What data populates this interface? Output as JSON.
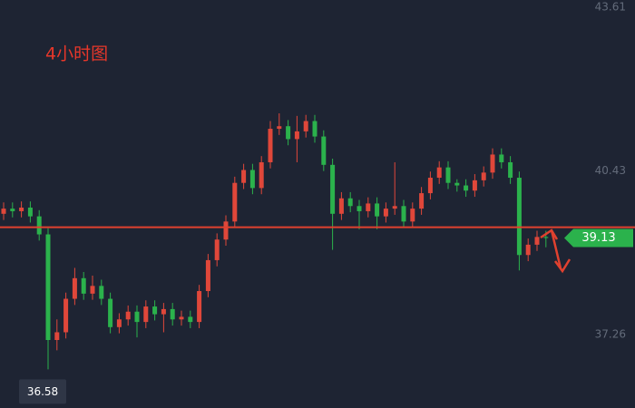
{
  "chart_data": {
    "type": "candlestick",
    "title": "4小时图",
    "categories": [
      null,
      null,
      null,
      null,
      null,
      null,
      null,
      null,
      null,
      null,
      null,
      null,
      null,
      null,
      null,
      null,
      null,
      null,
      null,
      null,
      null,
      null,
      null,
      null,
      null,
      null,
      null,
      null,
      null,
      null,
      null,
      null,
      null,
      null,
      null,
      null,
      null,
      null,
      null,
      null,
      null,
      null,
      null,
      null,
      null,
      null,
      null,
      null,
      null,
      null,
      null,
      null,
      null,
      null,
      null,
      null,
      null,
      null,
      null,
      null,
      null,
      null
    ],
    "open": [
      39.6,
      39.7,
      39.65,
      39.72,
      39.55,
      39.2,
      37.15,
      37.3,
      37.95,
      38.35,
      38.05,
      38.2,
      37.95,
      37.4,
      37.55,
      37.7,
      37.5,
      37.8,
      37.65,
      37.75,
      37.55,
      37.6,
      37.5,
      38.1,
      38.7,
      39.1,
      39.45,
      40.2,
      40.45,
      40.1,
      40.6,
      41.25,
      41.3,
      41.05,
      41.2,
      41.4,
      41.1,
      40.55,
      39.6,
      39.9,
      39.75,
      39.65,
      39.8,
      39.55,
      39.7,
      39.75,
      39.45,
      39.7,
      40.0,
      40.3,
      40.5,
      40.2,
      40.15,
      40.05,
      40.25,
      40.4,
      40.75,
      40.6,
      40.3,
      38.8,
      39.0,
      39.15
    ],
    "high": [
      39.82,
      39.82,
      39.84,
      39.84,
      39.67,
      39.32,
      37.55,
      38.07,
      38.55,
      38.47,
      38.4,
      38.32,
      38.07,
      37.67,
      37.82,
      37.82,
      37.92,
      37.92,
      37.87,
      37.87,
      37.72,
      37.72,
      38.22,
      38.82,
      39.22,
      39.57,
      40.32,
      40.57,
      40.57,
      40.72,
      41.4,
      41.55,
      41.42,
      41.5,
      41.52,
      41.52,
      41.22,
      40.67,
      40.02,
      40.02,
      39.87,
      39.92,
      39.92,
      39.82,
      40.6,
      39.87,
      39.82,
      40.12,
      40.42,
      40.62,
      40.62,
      40.27,
      40.27,
      40.37,
      40.52,
      40.87,
      40.87,
      40.72,
      40.42,
      39.12,
      39.27,
      39.27
    ],
    "low": [
      39.48,
      39.53,
      39.53,
      39.43,
      39.08,
      36.58,
      36.95,
      37.18,
      37.83,
      37.93,
      37.93,
      37.83,
      37.28,
      37.28,
      37.43,
      37.2,
      37.38,
      37.53,
      37.3,
      37.43,
      37.43,
      37.38,
      37.38,
      37.98,
      38.58,
      38.98,
      39.33,
      40.08,
      39.98,
      39.98,
      40.48,
      41.13,
      40.93,
      40.6,
      41.08,
      40.98,
      40.43,
      38.9,
      39.48,
      39.63,
      39.3,
      39.53,
      39.3,
      39.43,
      39.58,
      39.33,
      39.33,
      39.58,
      39.88,
      40.18,
      40.08,
      40.03,
      39.93,
      39.93,
      40.13,
      40.28,
      40.48,
      40.18,
      38.5,
      38.68,
      38.88,
      38.95
    ],
    "close": [
      39.7,
      39.65,
      39.72,
      39.55,
      39.2,
      37.15,
      37.3,
      37.95,
      38.35,
      38.05,
      38.2,
      37.95,
      37.4,
      37.55,
      37.7,
      37.5,
      37.8,
      37.65,
      37.75,
      37.55,
      37.6,
      37.5,
      38.1,
      38.7,
      39.1,
      39.45,
      40.2,
      40.45,
      40.1,
      40.6,
      41.25,
      41.3,
      41.05,
      41.2,
      41.4,
      41.1,
      40.55,
      39.6,
      39.9,
      39.75,
      39.65,
      39.8,
      39.55,
      39.7,
      39.75,
      39.45,
      39.7,
      40.0,
      40.3,
      40.5,
      40.2,
      40.15,
      40.05,
      40.25,
      40.4,
      40.75,
      40.6,
      40.3,
      38.8,
      39.0,
      39.15,
      39.13
    ],
    "up_color": "#e0473a",
    "down_color": "#2bb24c",
    "ylim": [
      35.83,
      43.75
    ],
    "yticks": [
      37.26,
      40.43,
      43.61
    ],
    "horizontal_line": 39.34,
    "line_color": "#e0412f",
    "current_price": 39.13,
    "current_price_color": "#2bb24c",
    "low_label": 36.58
  }
}
